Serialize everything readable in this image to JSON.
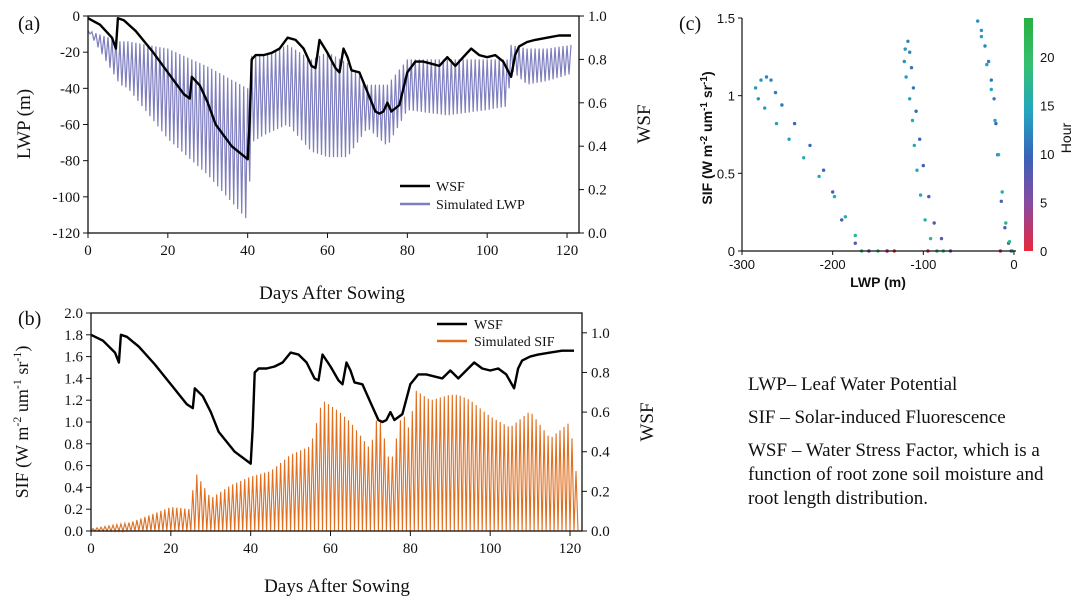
{
  "chart_data": [
    {
      "panel": "(a)",
      "type": "line",
      "xlabel": "Days After Sowing",
      "ylabel": "LWP (m)",
      "y2label": "WSF",
      "xlim": [
        0,
        123
      ],
      "ylim": [
        -120,
        0
      ],
      "y2lim": [
        0.0,
        1.0
      ],
      "xticks": [
        "0",
        "20",
        "40",
        "60",
        "80",
        "100",
        "120"
      ],
      "yticks": [
        "0",
        "-20",
        "-40",
        "-60",
        "-80",
        "-100",
        "-120"
      ],
      "y2ticks": [
        "0.0",
        "0.2",
        "0.4",
        "0.6",
        "0.8",
        "1.0"
      ],
      "legend_position": "bottom-right",
      "series": [
        {
          "name": "WSF",
          "axis": "right",
          "color": "#000000",
          "x": [
            0,
            3,
            6,
            7,
            7.5,
            9,
            12,
            16,
            20,
            24,
            25.5,
            26,
            28,
            30,
            32,
            36,
            40,
            40.5,
            41,
            42,
            44,
            46,
            48,
            50,
            52,
            54,
            56,
            57,
            58,
            60,
            62,
            63,
            64,
            65,
            66,
            68,
            70,
            72,
            73,
            74,
            75,
            76,
            78,
            80,
            82,
            84,
            86,
            88,
            90,
            92,
            94,
            96,
            98,
            100,
            102,
            104,
            106,
            107,
            108,
            110,
            112,
            115,
            118,
            121
          ],
          "y": [
            0.99,
            0.96,
            0.9,
            0.85,
            0.99,
            0.98,
            0.93,
            0.84,
            0.74,
            0.64,
            0.62,
            0.72,
            0.68,
            0.6,
            0.5,
            0.4,
            0.34,
            0.52,
            0.8,
            0.82,
            0.82,
            0.83,
            0.85,
            0.9,
            0.89,
            0.85,
            0.77,
            0.76,
            0.89,
            0.83,
            0.76,
            0.74,
            0.85,
            0.81,
            0.75,
            0.74,
            0.65,
            0.56,
            0.55,
            0.56,
            0.6,
            0.56,
            0.59,
            0.74,
            0.79,
            0.79,
            0.78,
            0.77,
            0.81,
            0.77,
            0.81,
            0.85,
            0.82,
            0.81,
            0.82,
            0.79,
            0.72,
            0.82,
            0.86,
            0.88,
            0.89,
            0.9,
            0.91,
            0.91
          ]
        },
        {
          "name": "Simulated LWP",
          "axis": "left",
          "color": "#7f7fbf",
          "x": [
            0,
            8,
            10,
            20,
            30,
            40,
            41,
            44,
            50,
            56,
            60,
            65,
            70,
            75,
            80,
            90,
            100,
            105,
            106,
            110,
            115,
            121
          ],
          "y_max": [
            -8,
            -14,
            -14,
            -18,
            -28,
            -40,
            -22,
            -22,
            -16,
            -24,
            -20,
            -26,
            -38,
            -38,
            -24,
            -24,
            -24,
            -24,
            -16,
            -18,
            -18,
            -16
          ],
          "y_min": [
            -8,
            -38,
            -40,
            -68,
            -88,
            -113,
            -70,
            -66,
            -60,
            -75,
            -78,
            -78,
            -62,
            -72,
            -52,
            -55,
            -52,
            -50,
            -30,
            -38,
            -36,
            -32
          ]
        }
      ]
    },
    {
      "panel": "(b)",
      "type": "line",
      "xlabel": "Days After Sowing",
      "ylabel_main": "SIF (W m",
      "ylabel_sup1": "-2",
      "ylabel_mid": " um",
      "ylabel_sup2": "-1",
      "ylabel_mid2": " sr",
      "ylabel_sup3": "-1",
      "ylabel_end": ")",
      "y2label": "WSF",
      "xlim": [
        0,
        123
      ],
      "ylim": [
        0.0,
        2.0
      ],
      "y2lim": [
        0.0,
        1.1
      ],
      "xticks": [
        "0",
        "20",
        "40",
        "60",
        "80",
        "100",
        "120"
      ],
      "yticks": [
        "0.0",
        "0.2",
        "0.4",
        "0.6",
        "0.8",
        "1.0",
        "1.2",
        "1.4",
        "1.6",
        "1.8",
        "2.0"
      ],
      "y2ticks": [
        "0.0",
        "0.2",
        "0.4",
        "0.6",
        "0.8",
        "1.0"
      ],
      "legend_position": "top-right",
      "series": [
        {
          "name": "WSF",
          "axis": "right",
          "color": "#000000",
          "x": [
            0,
            3,
            6,
            7,
            7.5,
            9,
            12,
            16,
            20,
            24,
            25.5,
            26,
            28,
            30,
            32,
            36,
            40,
            40.5,
            41,
            42,
            44,
            46,
            48,
            50,
            52,
            54,
            56,
            57,
            58,
            60,
            62,
            63,
            64,
            65,
            66,
            68,
            70,
            72,
            73,
            74,
            75,
            76,
            78,
            80,
            82,
            84,
            86,
            88,
            90,
            92,
            94,
            96,
            98,
            100,
            102,
            104,
            106,
            107,
            108,
            110,
            112,
            115,
            118,
            121
          ],
          "y": [
            0.99,
            0.96,
            0.9,
            0.85,
            0.99,
            0.98,
            0.93,
            0.84,
            0.74,
            0.64,
            0.62,
            0.72,
            0.68,
            0.6,
            0.5,
            0.4,
            0.34,
            0.52,
            0.8,
            0.82,
            0.82,
            0.83,
            0.85,
            0.9,
            0.89,
            0.85,
            0.77,
            0.76,
            0.89,
            0.83,
            0.76,
            0.74,
            0.85,
            0.81,
            0.75,
            0.74,
            0.65,
            0.56,
            0.55,
            0.56,
            0.6,
            0.56,
            0.59,
            0.74,
            0.79,
            0.79,
            0.78,
            0.77,
            0.81,
            0.77,
            0.81,
            0.85,
            0.82,
            0.81,
            0.82,
            0.79,
            0.72,
            0.82,
            0.86,
            0.88,
            0.89,
            0.9,
            0.91,
            0.91
          ]
        },
        {
          "name": "Simulated SIF",
          "axis": "left",
          "color": "#e07020",
          "daily_peak_x": [
            0,
            10,
            20,
            25,
            26,
            30,
            35,
            40,
            45,
            50,
            55,
            58,
            60,
            62,
            65,
            70,
            72,
            75,
            78,
            80,
            81,
            85,
            90,
            92,
            95,
            100,
            105,
            110,
            115,
            120,
            122
          ],
          "daily_peak_y": [
            0.02,
            0.08,
            0.22,
            0.2,
            0.55,
            0.3,
            0.42,
            0.5,
            0.55,
            0.7,
            0.78,
            1.2,
            1.15,
            1.1,
            1.0,
            0.75,
            1.1,
            0.6,
            1.1,
            0.9,
            1.3,
            1.2,
            1.25,
            1.25,
            1.2,
            1.05,
            0.95,
            1.1,
            0.85,
            1.0,
            0.4
          ]
        }
      ]
    },
    {
      "panel": "(c)",
      "type": "scatter",
      "xlabel": "LWP (m)",
      "ylabel_main": "SIF (W m",
      "ylabel_sup1": "-2",
      "ylabel_mid": " um",
      "ylabel_sup2": "-1",
      "ylabel_mid2": " sr",
      "ylabel_sup3": "-1",
      "ylabel_end": ")",
      "xlim": [
        -300,
        0
      ],
      "ylim": [
        0,
        1.5
      ],
      "xticks": [
        "-300",
        "-200",
        "-100",
        "0"
      ],
      "yticks": [
        "0",
        "0.5",
        "1",
        "1.5"
      ],
      "colorbar_label": "Hour",
      "colorbar_range": [
        0,
        24
      ],
      "colorbar_ticks": [
        "0",
        "5",
        "10",
        "15",
        "20"
      ],
      "colorbar_colors": [
        "#e8283c",
        "#8a4aa0",
        "#3a62b8",
        "#22a6c0",
        "#35c070",
        "#28b040"
      ],
      "points": [
        {
          "x": -160,
          "y": 0.0,
          "h": 7
        },
        {
          "x": -175,
          "y": 0.05,
          "h": 8
        },
        {
          "x": -190,
          "y": 0.2,
          "h": 9
        },
        {
          "x": -200,
          "y": 0.38,
          "h": 9
        },
        {
          "x": -210,
          "y": 0.52,
          "h": 10
        },
        {
          "x": -225,
          "y": 0.68,
          "h": 10
        },
        {
          "x": -242,
          "y": 0.82,
          "h": 10
        },
        {
          "x": -256,
          "y": 0.94,
          "h": 11
        },
        {
          "x": -263,
          "y": 1.02,
          "h": 11
        },
        {
          "x": -268,
          "y": 1.1,
          "h": 12
        },
        {
          "x": -273,
          "y": 1.12,
          "h": 12
        },
        {
          "x": -279,
          "y": 1.1,
          "h": 13
        },
        {
          "x": -285,
          "y": 1.05,
          "h": 13
        },
        {
          "x": -282,
          "y": 0.98,
          "h": 13
        },
        {
          "x": -275,
          "y": 0.92,
          "h": 14
        },
        {
          "x": -262,
          "y": 0.82,
          "h": 14
        },
        {
          "x": -248,
          "y": 0.72,
          "h": 14
        },
        {
          "x": -232,
          "y": 0.6,
          "h": 15
        },
        {
          "x": -215,
          "y": 0.48,
          "h": 15
        },
        {
          "x": -198,
          "y": 0.35,
          "h": 16
        },
        {
          "x": -186,
          "y": 0.22,
          "h": 16
        },
        {
          "x": -175,
          "y": 0.1,
          "h": 17
        },
        {
          "x": -168,
          "y": 0.0,
          "h": 18
        },
        {
          "x": -150,
          "y": 0.0,
          "h": 19
        },
        {
          "x": -140,
          "y": 0.0,
          "h": 2
        },
        {
          "x": -132,
          "y": 0.0,
          "h": 0
        },
        {
          "x": -70,
          "y": 0.0,
          "h": 7
        },
        {
          "x": -80,
          "y": 0.08,
          "h": 8
        },
        {
          "x": -88,
          "y": 0.18,
          "h": 8
        },
        {
          "x": -94,
          "y": 0.35,
          "h": 9
        },
        {
          "x": -100,
          "y": 0.55,
          "h": 9
        },
        {
          "x": -104,
          "y": 0.72,
          "h": 10
        },
        {
          "x": -108,
          "y": 0.9,
          "h": 10
        },
        {
          "x": -111,
          "y": 1.05,
          "h": 11
        },
        {
          "x": -113,
          "y": 1.18,
          "h": 11
        },
        {
          "x": -115,
          "y": 1.28,
          "h": 12
        },
        {
          "x": -117,
          "y": 1.35,
          "h": 12
        },
        {
          "x": -120,
          "y": 1.3,
          "h": 13
        },
        {
          "x": -121,
          "y": 1.22,
          "h": 13
        },
        {
          "x": -119,
          "y": 1.12,
          "h": 14
        },
        {
          "x": -115,
          "y": 0.98,
          "h": 14
        },
        {
          "x": -112,
          "y": 0.84,
          "h": 15
        },
        {
          "x": -110,
          "y": 0.68,
          "h": 15
        },
        {
          "x": -107,
          "y": 0.52,
          "h": 15
        },
        {
          "x": -103,
          "y": 0.36,
          "h": 16
        },
        {
          "x": -98,
          "y": 0.2,
          "h": 16
        },
        {
          "x": -92,
          "y": 0.08,
          "h": 17
        },
        {
          "x": -85,
          "y": 0.0,
          "h": 18
        },
        {
          "x": -78,
          "y": 0.0,
          "h": 19
        },
        {
          "x": -95,
          "y": 0.0,
          "h": 1
        },
        {
          "x": -140,
          "y": 0.0,
          "h": 3
        },
        {
          "x": -3,
          "y": 0.0,
          "h": 7
        },
        {
          "x": -6,
          "y": 0.05,
          "h": 8
        },
        {
          "x": -10,
          "y": 0.15,
          "h": 8
        },
        {
          "x": -14,
          "y": 0.32,
          "h": 9
        },
        {
          "x": -18,
          "y": 0.62,
          "h": 10
        },
        {
          "x": -20,
          "y": 0.82,
          "h": 10
        },
        {
          "x": -22,
          "y": 0.98,
          "h": 11
        },
        {
          "x": -25,
          "y": 1.1,
          "h": 11
        },
        {
          "x": -28,
          "y": 1.22,
          "h": 12
        },
        {
          "x": -32,
          "y": 1.32,
          "h": 12
        },
        {
          "x": -36,
          "y": 1.42,
          "h": 13
        },
        {
          "x": -40,
          "y": 1.48,
          "h": 13
        },
        {
          "x": -36,
          "y": 1.38,
          "h": 14
        },
        {
          "x": -30,
          "y": 1.2,
          "h": 14
        },
        {
          "x": -25,
          "y": 1.04,
          "h": 15
        },
        {
          "x": -21,
          "y": 0.84,
          "h": 15
        },
        {
          "x": -17,
          "y": 0.62,
          "h": 16
        },
        {
          "x": -13,
          "y": 0.38,
          "h": 16
        },
        {
          "x": -9,
          "y": 0.18,
          "h": 17
        },
        {
          "x": -5,
          "y": 0.06,
          "h": 18
        },
        {
          "x": -2,
          "y": 0.0,
          "h": 19
        },
        {
          "x": -15,
          "y": 0.0,
          "h": 0
        }
      ]
    }
  ],
  "notes": [
    "LWP– Leaf Water Potential",
    "SIF – Solar-induced Fluorescence",
    "WSF – Water Stress Factor, which is a function of root zone soil moisture and root length distribution."
  ]
}
